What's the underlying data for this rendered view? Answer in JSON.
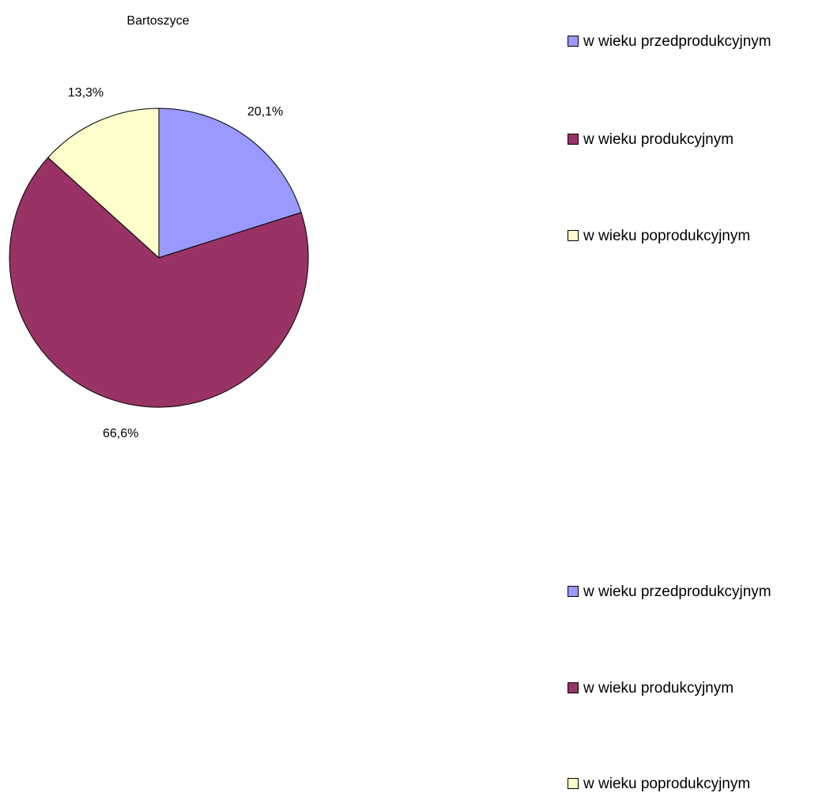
{
  "chart_data": {
    "type": "pie",
    "title": "Bartoszyce",
    "categories": [
      "w wieku przedprodukcyjnym",
      "w wieku produkcyjnym",
      "w wieku poprodukcyjnym"
    ],
    "values": [
      20.1,
      66.6,
      13.3
    ],
    "data_labels": [
      "20,1%",
      "66,6%",
      "13,3%"
    ],
    "colors": [
      "#9999FF",
      "#993366",
      "#FFFFCC"
    ],
    "legend_position": "right"
  },
  "legend_top": {
    "items": [
      {
        "label": "w wieku przedprodukcyjnym",
        "color": "#9999FF"
      },
      {
        "label": "w wieku produkcyjnym",
        "color": "#993366"
      },
      {
        "label": "w wieku poprodukcyjnym",
        "color": "#FFFFCC"
      }
    ]
  },
  "legend_bottom": {
    "items": [
      {
        "label": "w wieku przedprodukcyjnym",
        "color": "#9999FF"
      },
      {
        "label": "w wieku produkcyjnym",
        "color": "#993366"
      },
      {
        "label": "w wieku poprodukcyjnym",
        "color": "#FFFFCC"
      }
    ]
  }
}
